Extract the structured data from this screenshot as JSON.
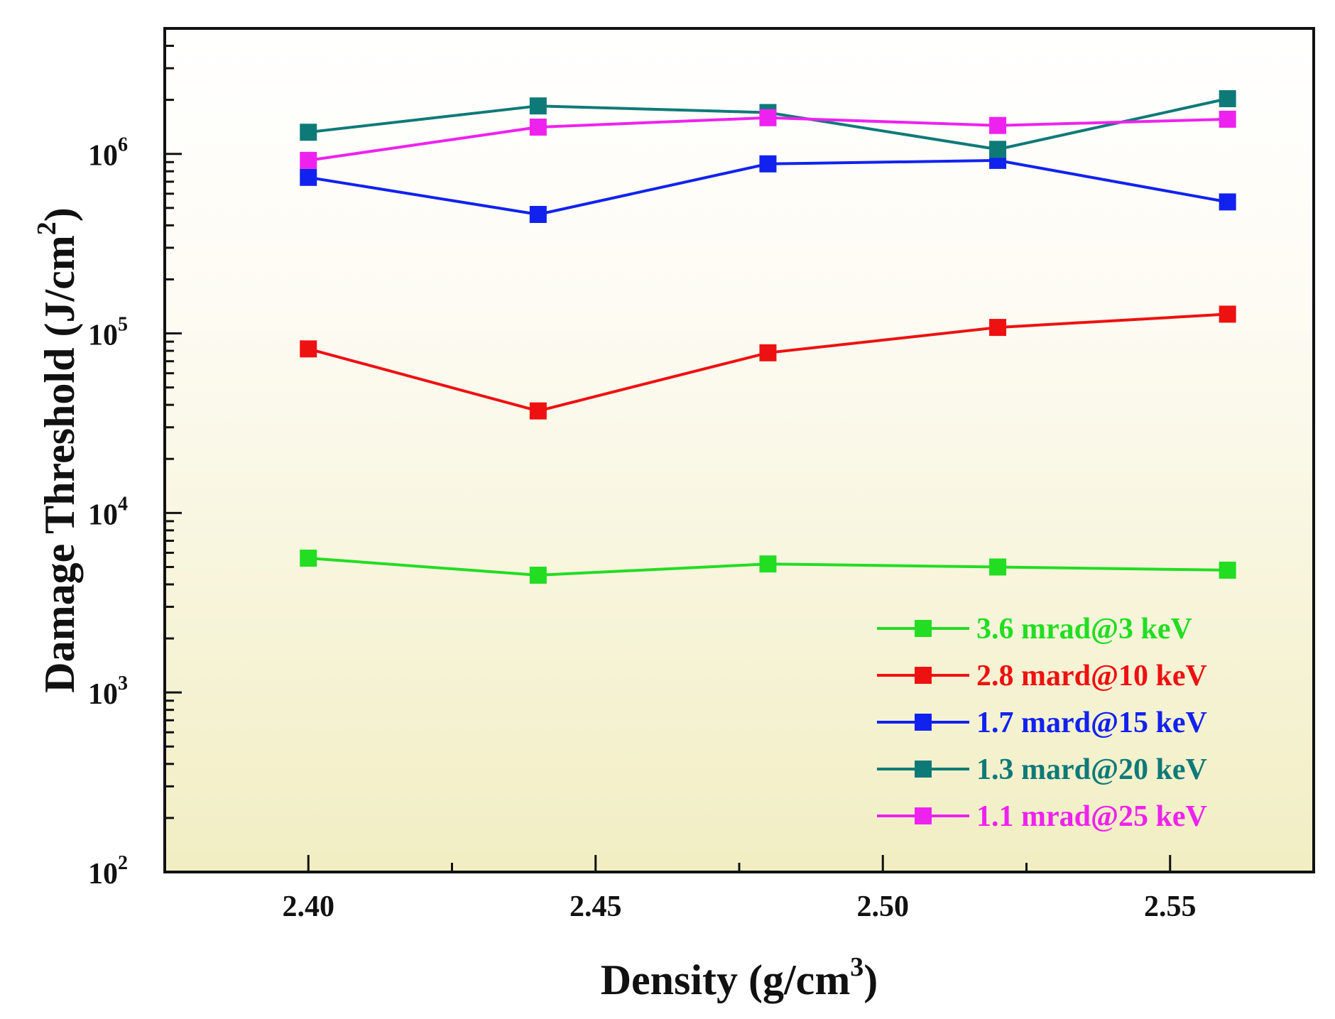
{
  "chart_data": {
    "type": "line",
    "title": "",
    "xlabel": "Density (g/cm",
    "xlabel_sup": "3",
    "xlabel_suffix": ")",
    "ylabel": "Damage Threshold (J/cm",
    "ylabel_sup": "2",
    "ylabel_suffix": ")",
    "yscale": "log",
    "xlim": [
      2.375,
      2.575
    ],
    "ylim": [
      100,
      5000000
    ],
    "x_ticks": [
      {
        "value": 2.4,
        "label": "2.40"
      },
      {
        "value": 2.45,
        "label": "2.45"
      },
      {
        "value": 2.5,
        "label": "2.50"
      },
      {
        "value": 2.55,
        "label": "2.55"
      }
    ],
    "y_ticks": [
      {
        "value": 100,
        "base": "10",
        "exp": "2"
      },
      {
        "value": 1000,
        "base": "10",
        "exp": "3"
      },
      {
        "value": 10000,
        "base": "10",
        "exp": "4"
      },
      {
        "value": 100000,
        "base": "10",
        "exp": "5"
      },
      {
        "value": 1000000,
        "base": "10",
        "exp": "6"
      }
    ],
    "x": [
      2.4,
      2.44,
      2.48,
      2.52,
      2.56
    ],
    "legend_position": "lower-right",
    "grid": false,
    "series": [
      {
        "name": "3.6 mrad@3 keV",
        "color": "#22dd22",
        "values": [
          5600,
          4500,
          5200,
          5000,
          4800
        ]
      },
      {
        "name": "2.8 mard@10 keV",
        "color": "#ee1111",
        "values": [
          82000,
          37000,
          78000,
          108000,
          128000
        ]
      },
      {
        "name": "1.7 mard@15 keV",
        "color": "#1122ee",
        "values": [
          740000,
          460000,
          880000,
          920000,
          540000
        ]
      },
      {
        "name": "1.3 mard@20 keV",
        "color": "#0e7a78",
        "values": [
          1320000,
          1850000,
          1700000,
          1060000,
          2030000
        ]
      },
      {
        "name": "1.1 mrad@25 keV",
        "color": "#ee22ee",
        "values": [
          920000,
          1410000,
          1590000,
          1440000,
          1560000
        ]
      }
    ]
  }
}
